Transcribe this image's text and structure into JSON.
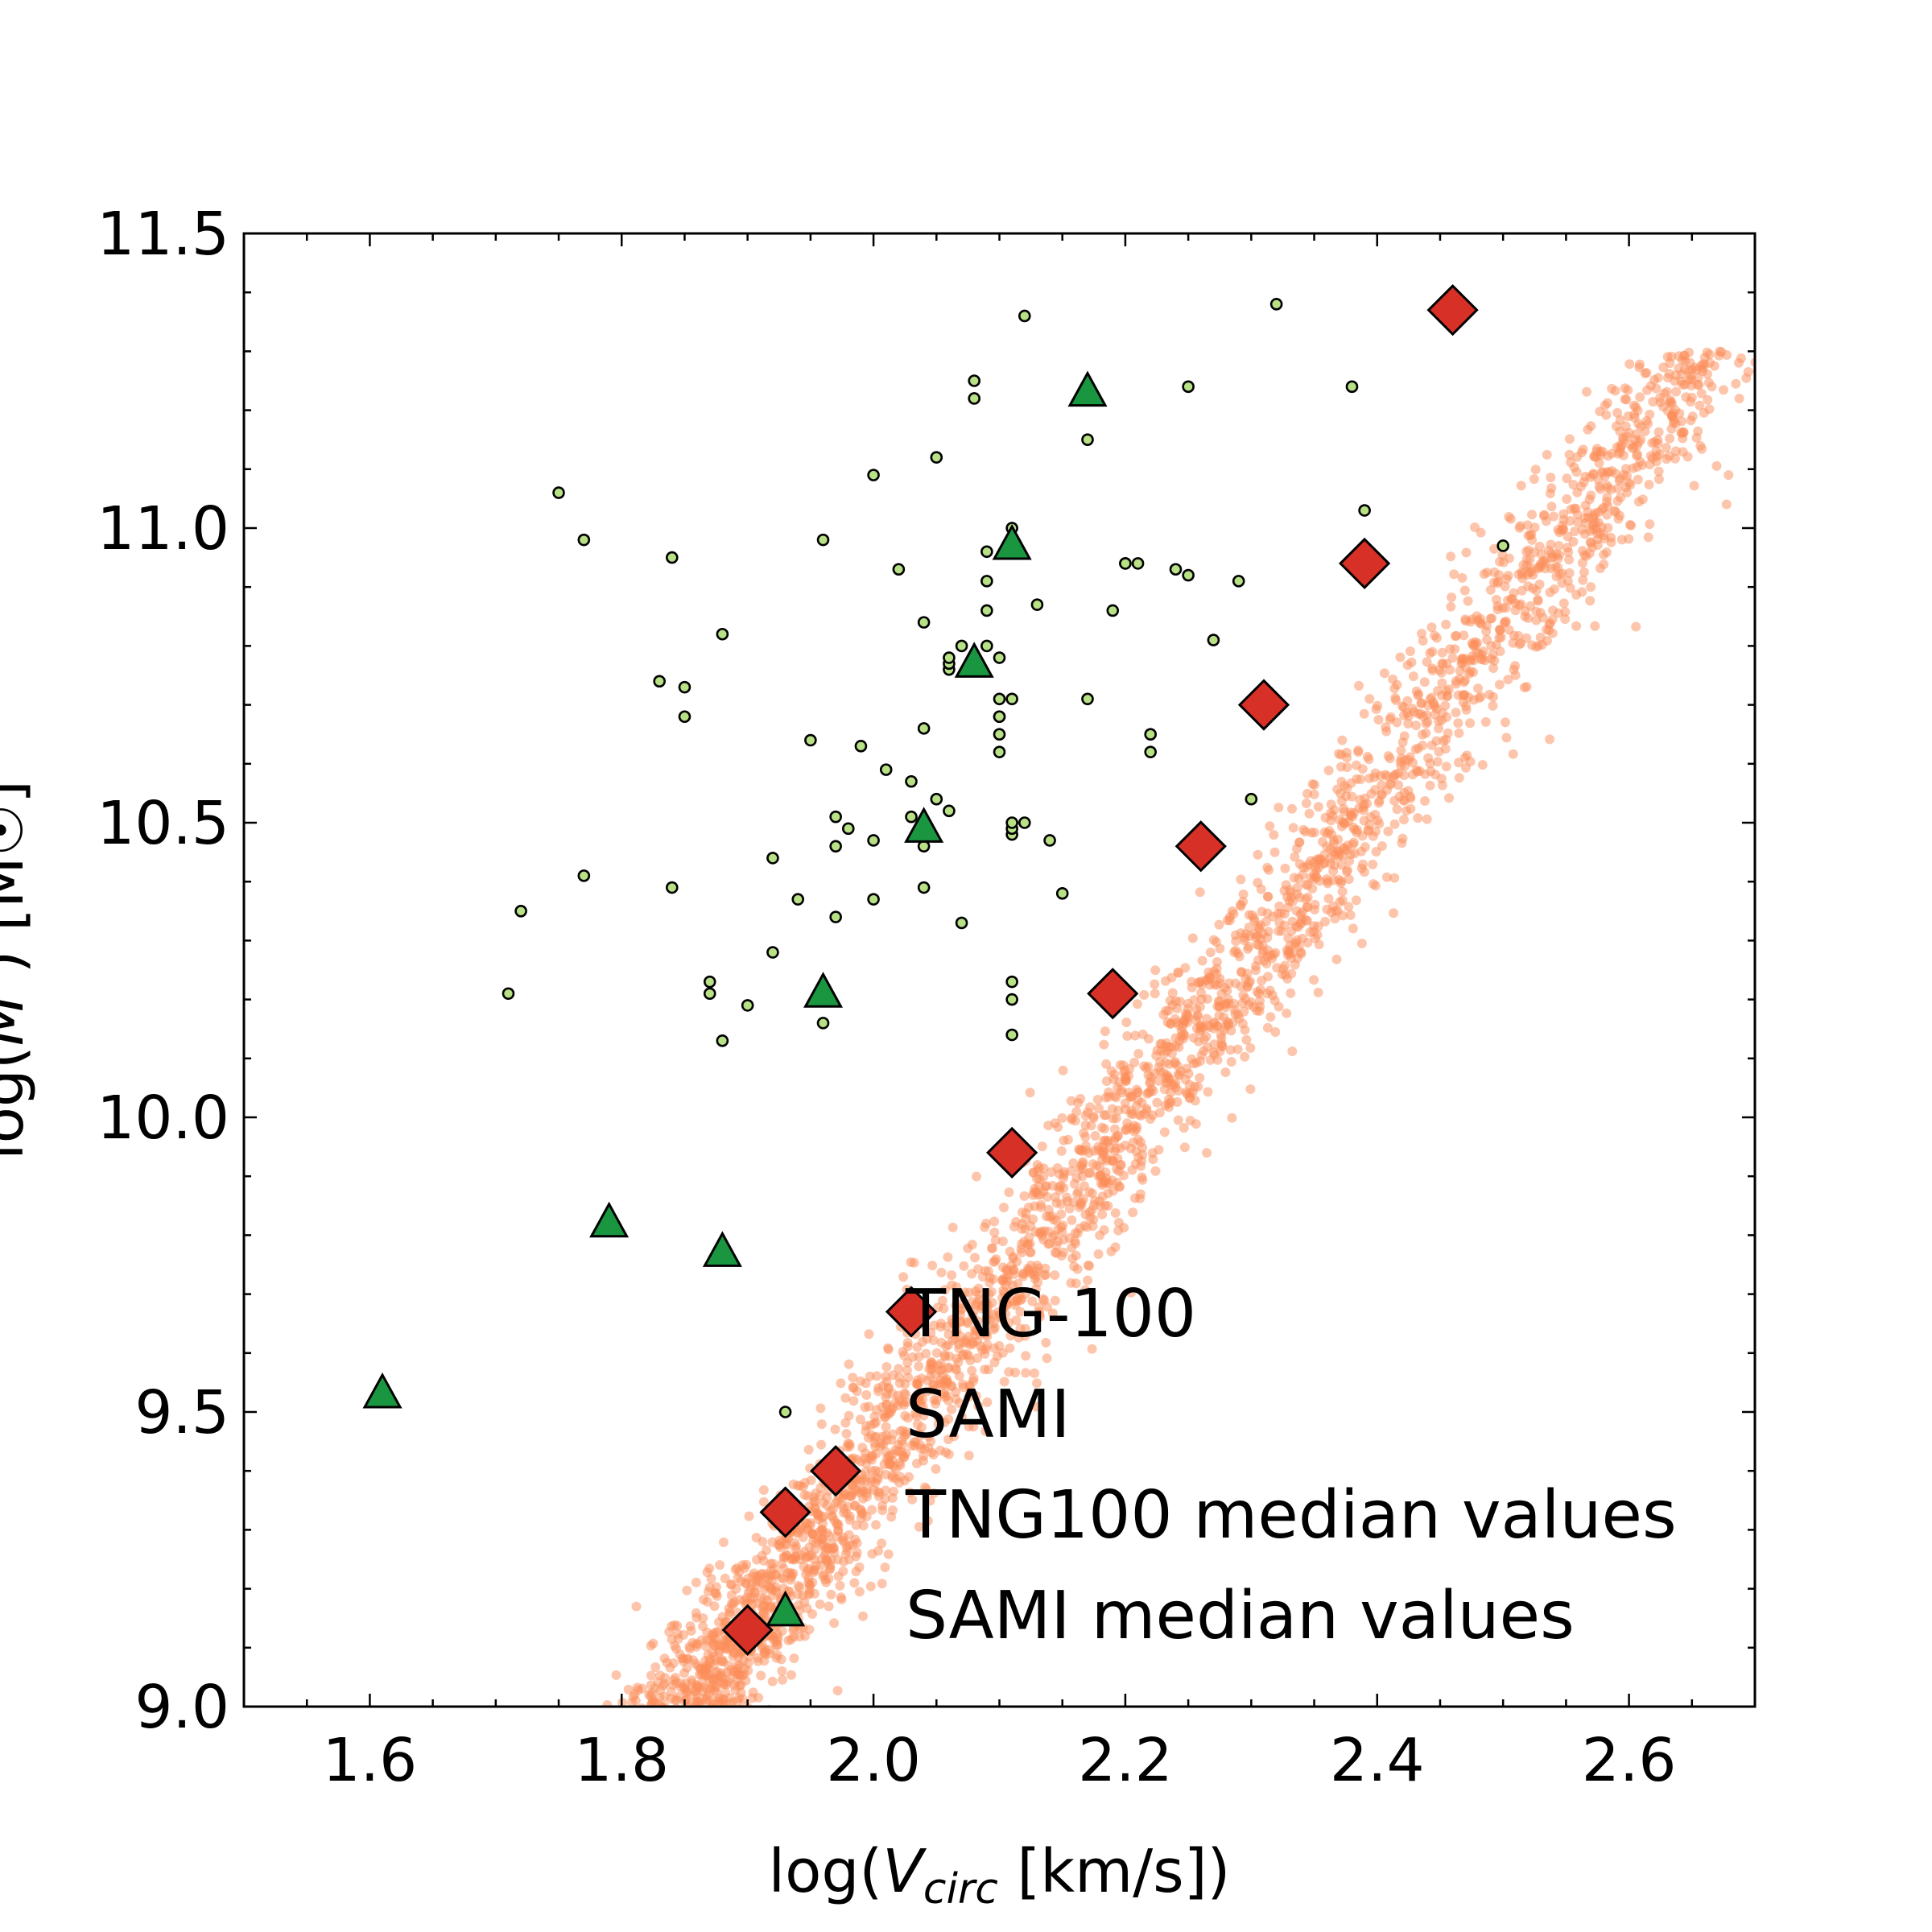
{
  "chart_data": {
    "type": "scatter",
    "xlabel": "log(V_circ [km/s])",
    "xlabel_parts": {
      "prefix": "log(",
      "var": "V",
      "sub": "circ",
      "suffix": " [km/s])"
    },
    "ylabel": "log(M* / [M☉])",
    "ylabel_parts": {
      "prefix": "log(",
      "var": "M",
      "sup": "*",
      "suffix": ") [M☉]"
    },
    "xlim": [
      1.5,
      2.7
    ],
    "ylim": [
      9.0,
      11.5
    ],
    "xticks": [
      1.6,
      1.8,
      2.0,
      2.2,
      2.4,
      2.6
    ],
    "xtick_labels": [
      "1.6",
      "1.8",
      "2.0",
      "2.2",
      "2.4",
      "2.6"
    ],
    "yticks": [
      9.0,
      9.5,
      10.0,
      10.5,
      11.0,
      11.5
    ],
    "ytick_labels": [
      "9.0",
      "9.5",
      "10.0",
      "10.5",
      "11.0",
      "11.5"
    ],
    "grid": false,
    "legend": {
      "position": "lower-right",
      "entries": [
        "TNG-100",
        "SAMI",
        "TNG100 median values",
        "SAMI median values"
      ]
    },
    "colors": {
      "tng_points": "#fc8d59",
      "sami_points": "#b8e186",
      "tng_median": "#d73027",
      "sami_median": "#1a9641",
      "edge": "#000000"
    },
    "series": [
      {
        "name": "TNG-100",
        "kind": "dense-cloud",
        "marker": "circle",
        "note_ridge": "relation log(M*) ≈ 2.84·log(Vc) + 3.74, scatter ≈ 0.04 dex in log(Vc), from log(M*) 9.0 to 11.4",
        "ridge": [
          [
            1.9,
            9.13
          ],
          [
            1.93,
            9.33
          ],
          [
            1.97,
            9.4
          ],
          [
            2.03,
            9.67
          ],
          [
            2.11,
            9.94
          ],
          [
            2.19,
            10.21
          ],
          [
            2.26,
            10.46
          ],
          [
            2.31,
            10.7
          ],
          [
            2.39,
            10.94
          ],
          [
            2.46,
            11.37
          ]
        ],
        "count": 3200
      },
      {
        "name": "SAMI",
        "marker": "circle",
        "x": [
          1.71,
          1.72,
          1.75,
          1.77,
          1.77,
          1.83,
          1.84,
          1.85,
          1.84,
          1.85,
          1.87,
          1.87,
          1.88,
          1.88,
          1.9,
          1.92,
          1.92,
          1.94,
          1.95,
          1.96,
          1.96,
          1.97,
          1.97,
          1.97,
          1.98,
          1.99,
          2.0,
          2.0,
          2.01,
          2.02,
          2.03,
          2.03,
          2.04,
          2.04,
          2.04,
          2.05,
          2.05,
          2.06,
          2.06,
          2.06,
          2.07,
          2.07,
          2.08,
          2.08,
          2.09,
          2.09,
          2.09,
          2.1,
          2.1,
          2.1,
          2.1,
          2.1,
          2.11,
          2.11,
          2.11,
          2.11,
          2.11,
          2.11,
          2.11,
          2.11,
          2.12,
          2.12,
          2.13,
          2.14,
          2.15,
          2.17,
          2.17,
          2.19,
          2.2,
          2.2,
          2.21,
          2.22,
          2.22,
          2.24,
          2.25,
          2.25,
          2.27,
          2.29,
          2.3,
          2.32,
          2.38,
          2.39,
          2.5,
          2.04,
          2.0,
          2.09,
          2.11,
          1.93,
          2.06,
          2.1
        ],
        "y": [
          10.21,
          10.35,
          11.06,
          10.41,
          10.98,
          10.74,
          10.95,
          10.68,
          10.39,
          10.73,
          10.23,
          10.21,
          10.13,
          10.82,
          10.19,
          10.44,
          10.28,
          10.37,
          10.64,
          10.16,
          10.98,
          10.46,
          10.34,
          10.51,
          10.49,
          10.63,
          10.37,
          11.09,
          10.59,
          10.93,
          10.57,
          10.51,
          10.84,
          10.66,
          10.39,
          10.54,
          11.12,
          10.76,
          10.77,
          10.52,
          10.8,
          10.33,
          11.22,
          11.25,
          10.96,
          10.86,
          10.91,
          10.78,
          10.71,
          10.68,
          10.65,
          10.62,
          10.48,
          10.2,
          10.23,
          10.14,
          11.0,
          10.97,
          10.49,
          10.5,
          11.36,
          10.5,
          10.87,
          10.47,
          10.38,
          11.15,
          10.71,
          10.86,
          10.94,
          10.94,
          10.94,
          10.62,
          10.65,
          10.93,
          11.24,
          10.92,
          10.81,
          10.91,
          10.54,
          11.38,
          11.24,
          11.03,
          10.97,
          10.46,
          10.47,
          10.8,
          10.71,
          9.5,
          10.78,
          10.68
        ]
      },
      {
        "name": "TNG100 median values",
        "marker": "diamond",
        "x": [
          1.9,
          1.93,
          1.97,
          2.03,
          2.11,
          2.19,
          2.26,
          2.31,
          2.39,
          2.46
        ],
        "y": [
          9.13,
          9.33,
          9.4,
          9.67,
          9.94,
          10.21,
          10.46,
          10.7,
          10.94,
          11.37
        ]
      },
      {
        "name": "SAMI median values",
        "marker": "triangle",
        "x": [
          1.61,
          1.79,
          1.88,
          1.93,
          1.96,
          2.04,
          2.08,
          2.11,
          2.17
        ],
        "y": [
          9.53,
          9.82,
          9.77,
          9.16,
          10.21,
          10.49,
          10.77,
          10.97,
          11.23
        ]
      }
    ]
  }
}
